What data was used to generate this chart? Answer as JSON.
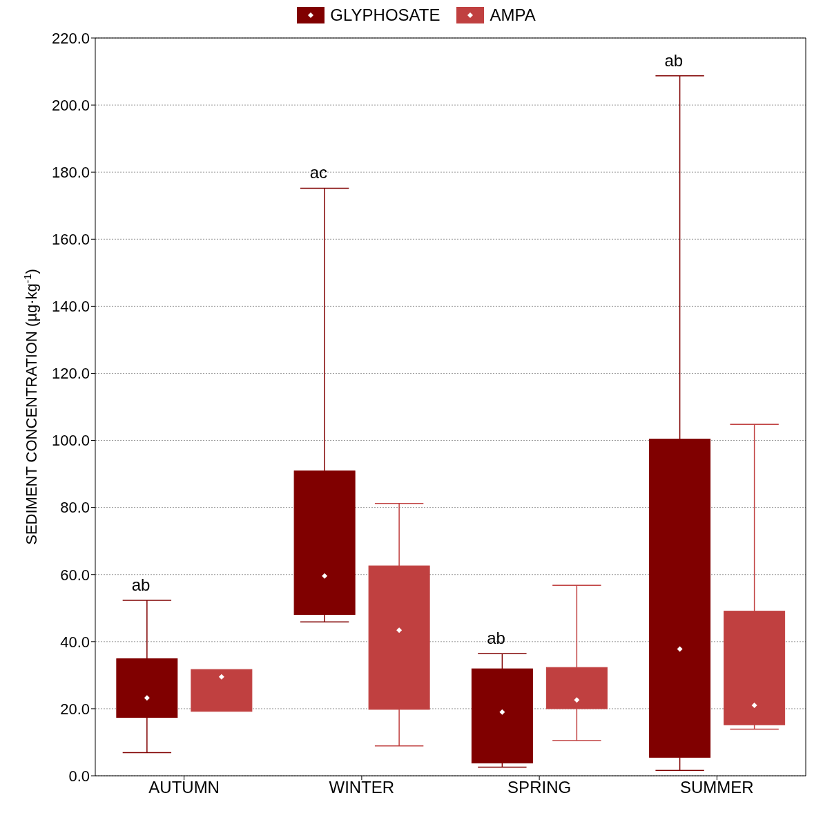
{
  "chart_data": {
    "type": "box",
    "ylabel": "SEDIMENT CONCENTRATION (µg·kg$^{-1}$)",
    "categories": [
      "AUTUMN",
      "WINTER",
      "SPRING",
      "SUMMER"
    ],
    "ylim": [
      0,
      220
    ],
    "yticks": [
      {
        "value": 0,
        "label": "0.0"
      },
      {
        "value": 20,
        "label": "20.0"
      },
      {
        "value": 40,
        "label": "40.0"
      },
      {
        "value": 60,
        "label": "60.0"
      },
      {
        "value": 80,
        "label": "80.0"
      },
      {
        "value": 100,
        "label": "100.0"
      },
      {
        "value": 120,
        "label": "120.0"
      },
      {
        "value": 140,
        "label": "140.0"
      },
      {
        "value": 160,
        "label": "160.0"
      },
      {
        "value": 180,
        "label": "180.0"
      },
      {
        "value": 200,
        "label": "200.0"
      },
      {
        "value": 220,
        "label": "220.0"
      }
    ],
    "grid": "y",
    "legend": "top",
    "series": [
      {
        "name": "GLYPHOSATE",
        "color": "#800000",
        "boxes": [
          {
            "low": 6.9,
            "q1": 17.4,
            "median": 23.2,
            "q3": 34.9,
            "high": 52.3
          },
          {
            "low": 45.9,
            "q1": 48.1,
            "median": 59.6,
            "q3": 90.9,
            "high": 175.2
          },
          {
            "low": 2.6,
            "q1": 3.8,
            "median": 19.0,
            "q3": 31.9,
            "high": 36.4
          },
          {
            "low": 1.6,
            "q1": 5.5,
            "median": 37.8,
            "q3": 100.4,
            "high": 208.7
          }
        ]
      },
      {
        "name": "AMPA",
        "color": "#c04040",
        "boxes": [
          {
            "low": 19.2,
            "q1": 19.2,
            "median": 29.5,
            "q3": 31.7,
            "high": 31.7
          },
          {
            "low": 8.9,
            "q1": 19.8,
            "median": 43.4,
            "q3": 62.6,
            "high": 81.2
          },
          {
            "low": 10.5,
            "q1": 20.0,
            "median": 22.6,
            "q3": 32.3,
            "high": 56.8
          },
          {
            "low": 13.9,
            "q1": 15.2,
            "median": 21.0,
            "q3": 49.1,
            "high": 104.8
          }
        ]
      }
    ],
    "annotations": [
      "ab",
      "ac",
      "ab",
      "ab"
    ]
  }
}
